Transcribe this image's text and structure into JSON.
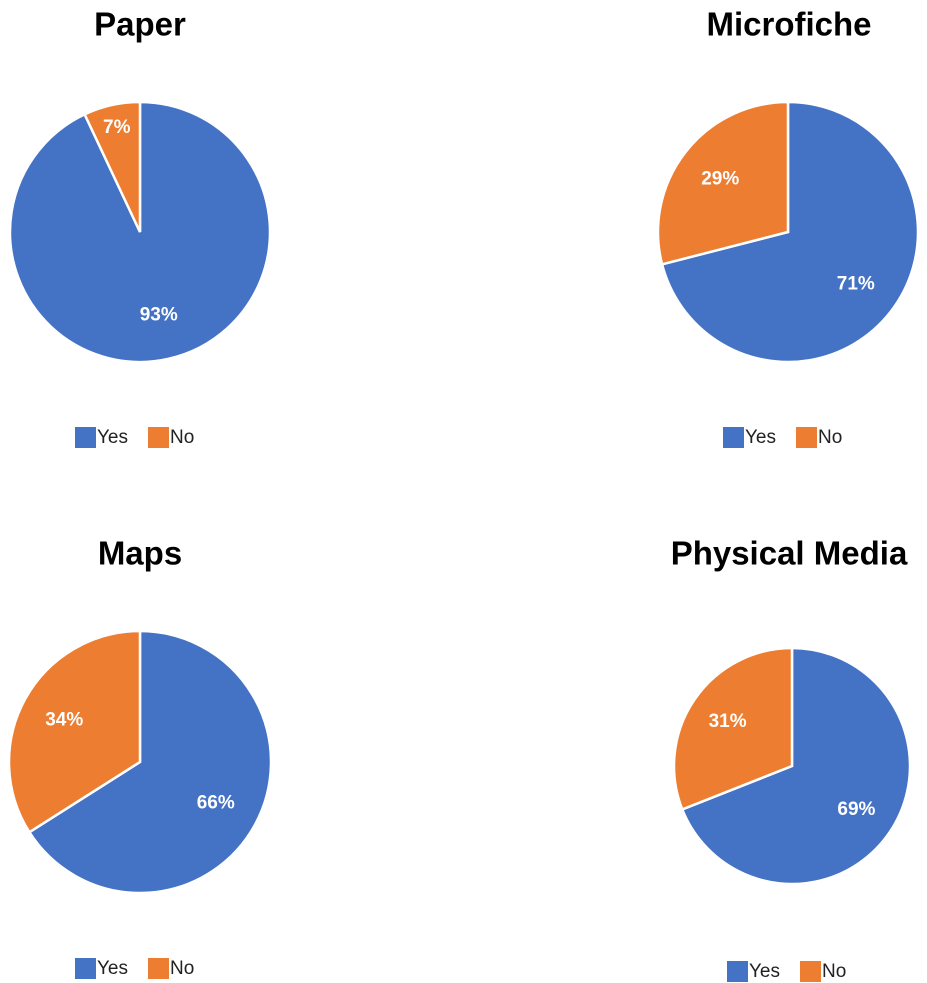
{
  "chart_data": [
    {
      "type": "pie",
      "title": "Paper",
      "categories": [
        "Yes",
        "No"
      ],
      "values": [
        93,
        7
      ],
      "value_labels": [
        "93%",
        "7%"
      ],
      "colors": [
        "#4472c4",
        "#ed7d31"
      ],
      "legend": "bottom"
    },
    {
      "type": "pie",
      "title": "Microfiche",
      "categories": [
        "Yes",
        "No"
      ],
      "values": [
        71,
        29
      ],
      "value_labels": [
        "71%",
        "29%"
      ],
      "colors": [
        "#4472c4",
        "#ed7d31"
      ],
      "legend": "bottom"
    },
    {
      "type": "pie",
      "title": "Maps",
      "categories": [
        "Yes",
        "No"
      ],
      "values": [
        66,
        34
      ],
      "value_labels": [
        "66%",
        "34%"
      ],
      "colors": [
        "#4472c4",
        "#ed7d31"
      ],
      "legend": "bottom"
    },
    {
      "type": "pie",
      "title": "Physical Media",
      "categories": [
        "Yes",
        "No"
      ],
      "values": [
        69,
        31
      ],
      "value_labels": [
        "69%",
        "31%"
      ],
      "colors": [
        "#4472c4",
        "#ed7d31"
      ],
      "legend": "bottom"
    }
  ]
}
